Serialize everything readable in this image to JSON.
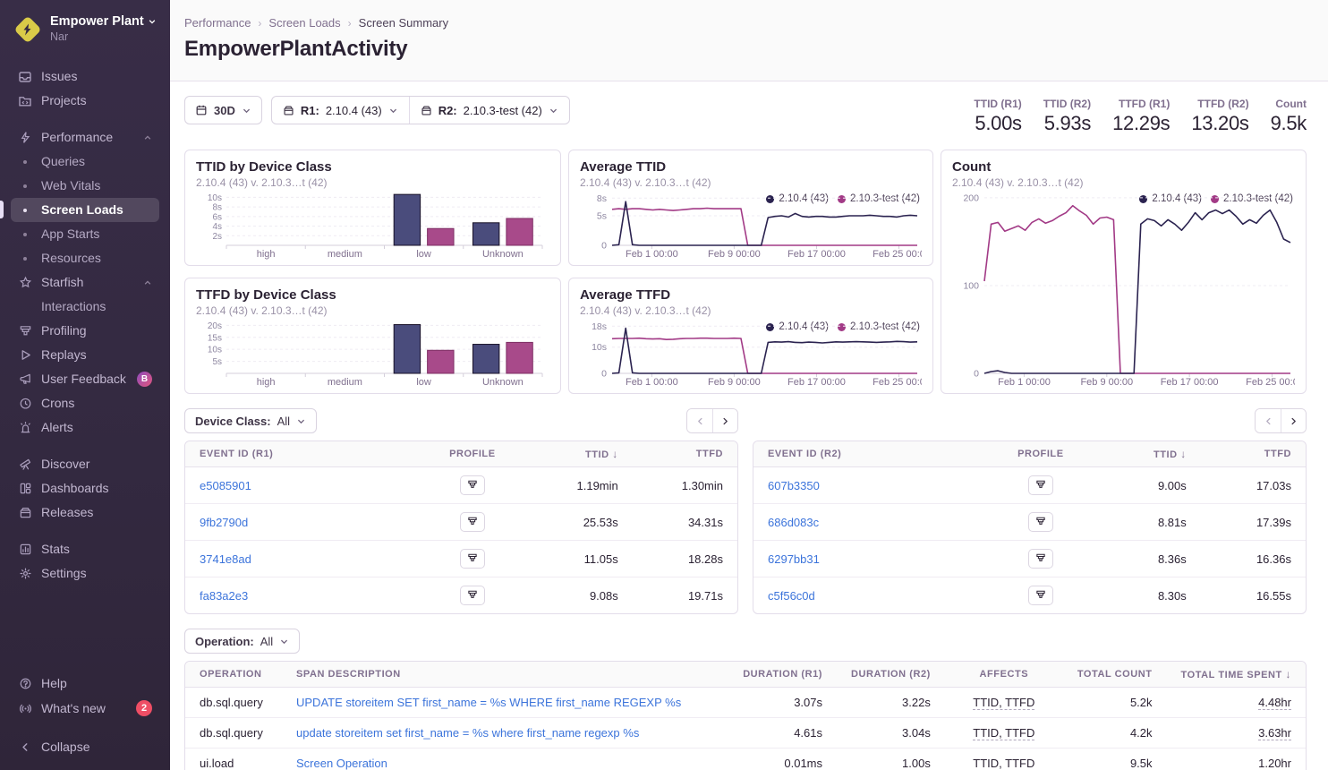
{
  "sidebar": {
    "org_name": "Empower Plant",
    "org_sub": "Nar",
    "items": {
      "issues": "Issues",
      "projects": "Projects",
      "performance": "Performance",
      "queries": "Queries",
      "web_vitals": "Web Vitals",
      "screen_loads": "Screen Loads",
      "app_starts": "App Starts",
      "resources": "Resources",
      "starfish": "Starfish",
      "interactions": "Interactions",
      "profiling": "Profiling",
      "replays": "Replays",
      "user_feedback": "User Feedback",
      "user_feedback_badge": "B",
      "crons": "Crons",
      "alerts": "Alerts",
      "discover": "Discover",
      "dashboards": "Dashboards",
      "releases": "Releases",
      "stats": "Stats",
      "settings": "Settings",
      "help": "Help",
      "whats_new": "What's new",
      "whats_new_badge": "2",
      "collapse": "Collapse"
    }
  },
  "breadcrumbs": {
    "items": [
      "Performance",
      "Screen Loads",
      "Screen Summary"
    ]
  },
  "page_title": "EmpowerPlantActivity",
  "filters": {
    "date_range": "30D",
    "r1_prefix": "R1:",
    "r1_value": "2.10.4 (43)",
    "r2_prefix": "R2:",
    "r2_value": "2.10.3-test (42)",
    "device_class_label": "Device Class:",
    "device_class_value": "All",
    "operation_label": "Operation:",
    "operation_value": "All"
  },
  "metrics": [
    {
      "label": "TTID (R1)",
      "value": "5.00s"
    },
    {
      "label": "TTID (R2)",
      "value": "5.93s"
    },
    {
      "label": "TTFD (R1)",
      "value": "12.29s"
    },
    {
      "label": "TTFD (R2)",
      "value": "13.20s"
    },
    {
      "label": "Count",
      "value": "9.5k"
    }
  ],
  "colors": {
    "bar_r1_fill": "#4a4c7c",
    "bar_r1_border": "#181127",
    "bar_r2_fill": "#a84a8a",
    "bar_r2_border": "#7d2d63",
    "line_r1": "#2b2350",
    "line_r2": "#a23a86",
    "link": "#3c74db",
    "badge_red": "#ef4e65"
  },
  "chart_data": [
    {
      "type": "bar",
      "title": "TTID by Device Class",
      "subtitle": "2.10.4 (43) v. 2.10.3…t (42)",
      "categories": [
        "high",
        "medium",
        "low",
        "Unknown"
      ],
      "ylim": [
        0,
        11
      ],
      "yticks": [
        {
          "v": 2,
          "label": "2s"
        },
        {
          "v": 4,
          "label": "4s"
        },
        {
          "v": 6,
          "label": "6s"
        },
        {
          "v": 8,
          "label": "8s"
        },
        {
          "v": 10,
          "label": "10s"
        }
      ],
      "series": [
        {
          "name": "2.10.4 (43)",
          "color": "#4a4c7c",
          "border": "#181127",
          "values": [
            0,
            0,
            10.6,
            4.7
          ]
        },
        {
          "name": "2.10.3-test (42)",
          "color": "#a84a8a",
          "border": "#7d2d63",
          "values": [
            0,
            0,
            3.5,
            5.6
          ]
        }
      ]
    },
    {
      "type": "line",
      "title": "Average TTID",
      "subtitle": "2.10.4 (43) v. 2.10.3…t (42)",
      "ylim": [
        0,
        8.8
      ],
      "yticks": [
        {
          "v": 0,
          "label": "0"
        },
        {
          "v": 5,
          "label": "5s"
        },
        {
          "v": 8,
          "label": "8s"
        }
      ],
      "xticks": [
        {
          "f": 0.13,
          "label": "Feb 1 00:00"
        },
        {
          "f": 0.4,
          "label": "Feb 9 00:00"
        },
        {
          "f": 0.67,
          "label": "Feb 17 00:00"
        },
        {
          "f": 0.94,
          "label": "Feb 25 00:0"
        }
      ],
      "series": [
        {
          "name": "2.10.4 (43)",
          "color": "#2b2350",
          "values": [
            0,
            0.1,
            7.4,
            0.1,
            0,
            0,
            0,
            0,
            0,
            0,
            0,
            0,
            0,
            0,
            0,
            0,
            0,
            0,
            0,
            0,
            0,
            0,
            0,
            4.7,
            4.9,
            5.0,
            4.8,
            5.4,
            4.9,
            4.8,
            4.9,
            4.9,
            4.8,
            4.8,
            4.9,
            5.0,
            5.0,
            5.0,
            5.1,
            5.0,
            4.9,
            4.9,
            4.8,
            5.0,
            5.1,
            5.0
          ]
        },
        {
          "name": "2.10.3-test (42)",
          "color": "#a23a86",
          "values": [
            6.1,
            6.2,
            6.1,
            6.2,
            6.2,
            6.1,
            6.0,
            6.1,
            6.0,
            5.9,
            6.0,
            6.1,
            6.2,
            6.2,
            6.3,
            6.2,
            6.2,
            6.2,
            6.2,
            6.2,
            0,
            0,
            0,
            0,
            0,
            0,
            0,
            0,
            0,
            0,
            0,
            0,
            0,
            0,
            0,
            0,
            0,
            0,
            0,
            0,
            0,
            0,
            0,
            0,
            0,
            0
          ]
        }
      ]
    },
    {
      "type": "line",
      "title": "Count",
      "subtitle": "2.10.4 (43) v. 2.10.3…t (42)",
      "ylim": [
        0,
        205
      ],
      "yticks": [
        {
          "v": 0,
          "label": "0"
        },
        {
          "v": 100,
          "label": "100"
        },
        {
          "v": 200,
          "label": "200"
        }
      ],
      "xticks": [
        {
          "f": 0.13,
          "label": "Feb 1 00:00"
        },
        {
          "f": 0.4,
          "label": "Feb 9 00:00"
        },
        {
          "f": 0.67,
          "label": "Feb 17 00:00"
        },
        {
          "f": 0.94,
          "label": "Feb 25 00:0"
        }
      ],
      "series": [
        {
          "name": "2.10.4 (43)",
          "color": "#2b2350",
          "values": [
            0,
            2,
            3,
            1,
            0,
            0,
            0,
            0,
            0,
            0,
            0,
            0,
            0,
            0,
            0,
            0,
            0,
            0,
            0,
            0,
            0,
            0,
            0,
            170,
            176,
            174,
            168,
            175,
            170,
            163,
            172,
            183,
            175,
            183,
            186,
            182,
            186,
            179,
            170,
            175,
            171,
            180,
            186,
            172,
            153,
            149
          ]
        },
        {
          "name": "2.10.3-test (42)",
          "color": "#a23a86",
          "values": [
            105,
            170,
            172,
            162,
            165,
            168,
            163,
            172,
            176,
            171,
            174,
            179,
            183,
            191,
            185,
            180,
            170,
            177,
            178,
            175,
            0,
            0,
            0,
            0,
            0,
            0,
            0,
            0,
            0,
            0,
            0,
            0,
            0,
            0,
            0,
            0,
            0,
            0,
            0,
            0,
            0,
            0,
            0,
            0,
            0,
            0
          ]
        }
      ]
    },
    {
      "type": "bar",
      "title": "TTFD by Device Class",
      "subtitle": "2.10.4 (43) v. 2.10.3…t (42)",
      "categories": [
        "high",
        "medium",
        "low",
        "Unknown"
      ],
      "ylim": [
        0,
        22
      ],
      "yticks": [
        {
          "v": 5,
          "label": "5s"
        },
        {
          "v": 10,
          "label": "10s"
        },
        {
          "v": 15,
          "label": "15s"
        },
        {
          "v": 20,
          "label": "20s"
        }
      ],
      "series": [
        {
          "name": "2.10.4 (43)",
          "color": "#4a4c7c",
          "border": "#181127",
          "values": [
            0,
            0,
            20.3,
            12.1
          ]
        },
        {
          "name": "2.10.3-test (42)",
          "color": "#a84a8a",
          "border": "#7d2d63",
          "values": [
            0,
            0,
            9.6,
            12.9
          ]
        }
      ]
    },
    {
      "type": "line",
      "title": "Average TTFD",
      "subtitle": "2.10.4 (43) v. 2.10.3…t (42)",
      "ylim": [
        0,
        19.8
      ],
      "yticks": [
        {
          "v": 0,
          "label": "0"
        },
        {
          "v": 10,
          "label": "10s"
        },
        {
          "v": 18,
          "label": "18s"
        }
      ],
      "xticks": [
        {
          "f": 0.13,
          "label": "Feb 1 00:00"
        },
        {
          "f": 0.4,
          "label": "Feb 9 00:00"
        },
        {
          "f": 0.67,
          "label": "Feb 17 00:00"
        },
        {
          "f": 0.94,
          "label": "Feb 25 00:0"
        }
      ],
      "series": [
        {
          "name": "2.10.4 (43)",
          "color": "#2b2350",
          "values": [
            0,
            0.2,
            17.2,
            0.2,
            0,
            0,
            0,
            0,
            0,
            0,
            0,
            0,
            0,
            0,
            0,
            0,
            0,
            0,
            0,
            0,
            0,
            0,
            0,
            11.8,
            12.0,
            11.9,
            12.1,
            11.8,
            11.7,
            11.9,
            11.8,
            11.6,
            11.8,
            12.0,
            11.9,
            12.0,
            12.1,
            12.0,
            11.9,
            11.8,
            11.9,
            12.0,
            12.2,
            12.1,
            11.9,
            12.0
          ]
        },
        {
          "name": "2.10.3-test (42)",
          "color": "#a23a86",
          "values": [
            13.2,
            13.3,
            13.3,
            13.3,
            13.4,
            13.2,
            13.1,
            13.2,
            12.9,
            13.0,
            13.2,
            13.3,
            13.3,
            13.4,
            13.4,
            13.3,
            13.3,
            13.3,
            13.4,
            13.3,
            0,
            0,
            0,
            0,
            0,
            0,
            0,
            0,
            0,
            0,
            0,
            0,
            0,
            0,
            0,
            0,
            0,
            0,
            0,
            0,
            0,
            0,
            0,
            0,
            0,
            0
          ]
        }
      ]
    }
  ],
  "samples_r1": {
    "columns": [
      "EVENT ID (R1)",
      "PROFILE",
      "TTID",
      "TTFD"
    ],
    "sorted_by": "TTID",
    "rows": [
      [
        "e5085901",
        "1.19min",
        "1.30min"
      ],
      [
        "9fb2790d",
        "25.53s",
        "34.31s"
      ],
      [
        "3741e8ad",
        "11.05s",
        "18.28s"
      ],
      [
        "fa83a2e3",
        "9.08s",
        "19.71s"
      ]
    ]
  },
  "samples_r2": {
    "columns": [
      "EVENT ID (R2)",
      "PROFILE",
      "TTID",
      "TTFD"
    ],
    "sorted_by": "TTID",
    "rows": [
      [
        "607b3350",
        "9.00s",
        "17.03s"
      ],
      [
        "686d083c",
        "8.81s",
        "17.39s"
      ],
      [
        "6297bb31",
        "8.36s",
        "16.36s"
      ],
      [
        "c5f56c0d",
        "8.30s",
        "16.55s"
      ]
    ]
  },
  "spans_table": {
    "columns": [
      "OPERATION",
      "SPAN DESCRIPTION",
      "DURATION (R1)",
      "DURATION (R2)",
      "AFFECTS",
      "TOTAL COUNT",
      "TOTAL TIME SPENT"
    ],
    "sorted_by": "TOTAL TIME SPENT",
    "rows": [
      {
        "operation": "db.sql.query",
        "description": "UPDATE storeitem SET first_name = %s WHERE first_name REGEXP %s",
        "duration_r1": "3.07s",
        "duration_r2": "3.22s",
        "affects": "TTID, TTFD",
        "total_count": "5.2k",
        "total_time": "4.48hr"
      },
      {
        "operation": "db.sql.query",
        "description": "update storeitem set first_name = %s where first_name regexp %s",
        "duration_r1": "4.61s",
        "duration_r2": "3.04s",
        "affects": "TTID, TTFD",
        "total_count": "4.2k",
        "total_time": "3.63hr"
      },
      {
        "operation": "ui.load",
        "description": "Screen Operation",
        "duration_r1": "0.01ms",
        "duration_r2": "1.00s",
        "affects": "TTID, TTFD",
        "total_count": "9.5k",
        "total_time": "1.20hr"
      }
    ]
  }
}
